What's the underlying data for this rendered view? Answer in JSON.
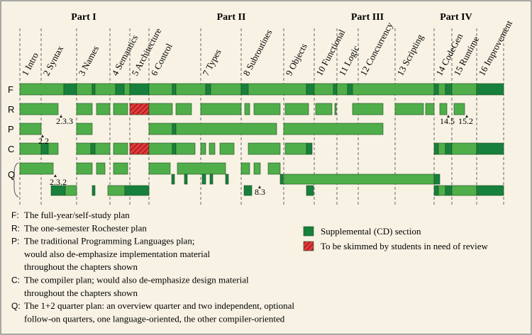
{
  "parts": [
    "Part I",
    "Part II",
    "Part III",
    "Part IV"
  ],
  "chapters": [
    "1 Intro",
    "2 Syntax",
    "3 Names",
    "4 Semantics",
    "5 Architecture",
    "6 Control",
    "7 Types",
    "8 Subroutines",
    "9 Objects",
    "10 Functional",
    "11 Logic",
    "12 Concurrency",
    "13 Scripting",
    "14 CodeGen",
    "15 Runtime",
    "16 Improvement"
  ],
  "rows": [
    "F",
    "R",
    "P",
    "C",
    "Q"
  ],
  "annotations": [
    "2.3.3",
    "2.2",
    "2.3.2",
    "8.3",
    "14.5",
    "15.2"
  ],
  "plans": [
    {
      "key": "F:",
      "lines": [
        "The full-year/self-study plan"
      ]
    },
    {
      "key": "R:",
      "lines": [
        "The one-semester Rochester plan"
      ]
    },
    {
      "key": "P:",
      "lines": [
        "The traditional Programming Languages plan;",
        "would also de-emphasize implementation material",
        "throughout the chapters shown"
      ]
    },
    {
      "key": "C:",
      "lines": [
        "The compiler plan; would also de-emphasize design material",
        "throughout the chapters shown"
      ]
    },
    {
      "key": "Q:",
      "lines": [
        "The 1+2 quarter plan: an overview quarter and two independent, optional",
        "follow-on quarters, one language-oriented, the other compiler-oriented"
      ]
    }
  ],
  "legend": [
    "Supplemental (CD) section",
    "To be skimmed by students in need of review"
  ]
}
